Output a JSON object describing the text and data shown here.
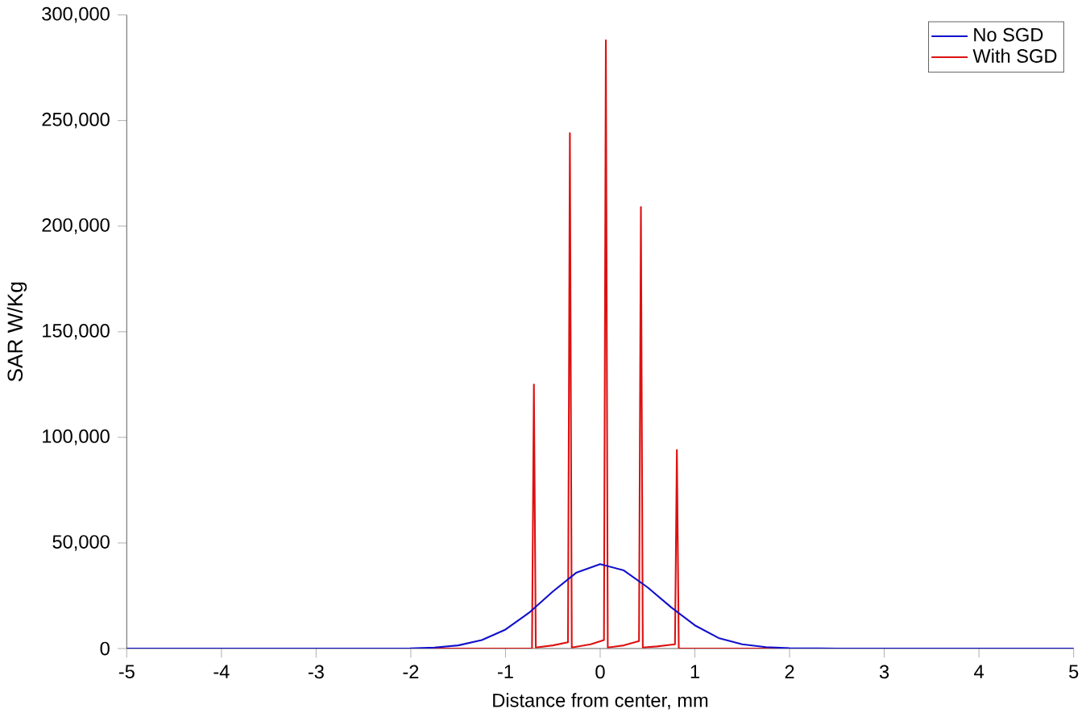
{
  "chart_data": {
    "type": "line",
    "xlabel": "Distance from center, mm",
    "ylabel": "SAR  W/Kg",
    "xlim": [
      -5,
      5
    ],
    "ylim": [
      0,
      300000
    ],
    "xticks": [
      -5,
      -4,
      -3,
      -2,
      -1,
      0,
      1,
      2,
      3,
      4,
      5
    ],
    "yticks": [
      {
        "value": 0,
        "label": "0"
      },
      {
        "value": 50000,
        "label": "50,000"
      },
      {
        "value": 100000,
        "label": "100,000"
      },
      {
        "value": 150000,
        "label": "150,000"
      },
      {
        "value": 200000,
        "label": "200,000"
      },
      {
        "value": 250000,
        "label": "250,000"
      },
      {
        "value": 300000,
        "label": "300,000"
      }
    ],
    "legend": "top right",
    "grid": false,
    "line_style": "solid",
    "marker": "none",
    "series": [
      {
        "name": "No SGD",
        "color": "#1010cc",
        "x": [
          -5,
          -2.5,
          -2,
          -1.75,
          -1.5,
          -1.25,
          -1,
          -0.75,
          -0.5,
          -0.25,
          0,
          0.25,
          0.5,
          0.75,
          1,
          1.25,
          1.5,
          1.75,
          2,
          2.5,
          5
        ],
        "values": [
          0,
          0,
          100,
          500,
          1500,
          4000,
          9000,
          17000,
          27000,
          36000,
          40000,
          37000,
          29000,
          19500,
          11000,
          5000,
          2000,
          700,
          200,
          0,
          0
        ]
      },
      {
        "name": "With SGD",
        "color": "#dd1111",
        "x": [
          -5,
          -0.72,
          -0.7,
          -0.68,
          -0.5,
          -0.34,
          -0.32,
          -0.3,
          -0.1,
          0.04,
          0.06,
          0.08,
          0.25,
          0.41,
          0.43,
          0.45,
          0.6,
          0.79,
          0.81,
          0.83,
          5
        ],
        "values": [
          0,
          0,
          125000,
          500,
          1500,
          3000,
          244000,
          500,
          2000,
          4000,
          288000,
          500,
          1500,
          3500,
          209000,
          500,
          1000,
          2000,
          94000,
          0,
          0
        ]
      }
    ]
  }
}
